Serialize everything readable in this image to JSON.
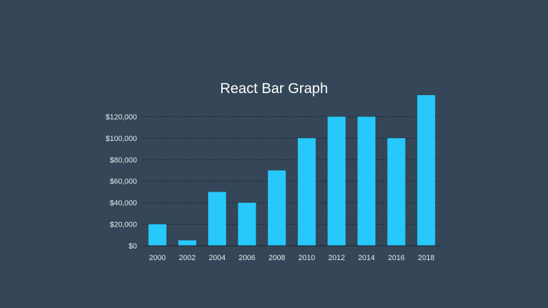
{
  "chart_data": {
    "type": "bar",
    "title": "React Bar Graph",
    "xlabel": "",
    "ylabel": "",
    "categories": [
      "2000",
      "2002",
      "2004",
      "2006",
      "2008",
      "2010",
      "2012",
      "2014",
      "2016",
      "2018"
    ],
    "values": [
      20000,
      5000,
      50000,
      40000,
      70000,
      100000,
      120000,
      120000,
      100000,
      140000
    ],
    "ylim": [
      0,
      140000
    ],
    "yticks": [
      0,
      20000,
      40000,
      60000,
      80000,
      100000,
      120000
    ],
    "ytick_labels": [
      "$0",
      "$20,000",
      "$40,000",
      "$60,000",
      "$80,000",
      "$100,000",
      "$120,000"
    ],
    "grid": "horizontal-dashed",
    "legend": "none",
    "colors": {
      "background": "#344657",
      "bar": "#27c8fb",
      "grid": "#1b2733",
      "text": "#e6ebf0"
    }
  }
}
